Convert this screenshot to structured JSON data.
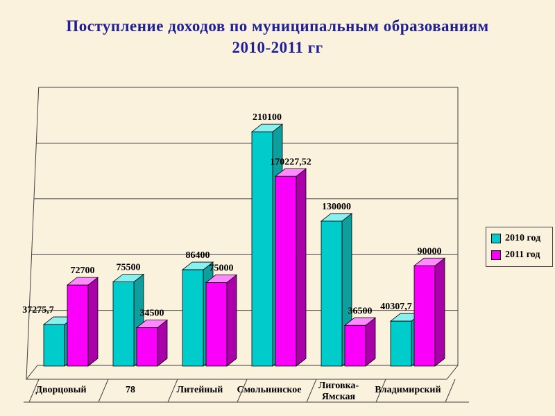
{
  "slide": {
    "background_color": "#FBF2DE"
  },
  "title": {
    "line1": "Поступление доходов по муниципальным образованиям",
    "line2": "2010-2011 гг",
    "color": "#1F1F96"
  },
  "legend": {
    "items": [
      {
        "label": "2010 год",
        "color": "#00CCCC"
      },
      {
        "label": "2011 год",
        "color": "#FA00FA"
      }
    ]
  },
  "chart_data": {
    "type": "bar",
    "style": "3d",
    "title": "Поступление доходов по муниципальным образованиям 2010-2011 гг",
    "xlabel": "",
    "ylabel": "",
    "categories": [
      "Дворцовый",
      "78",
      "Литейный",
      "Смольнинское",
      "Лиговка-Ямская",
      "Владимирский"
    ],
    "series": [
      {
        "name": "2010 год",
        "color": "#00CCCC",
        "color_top": "#8AEFEF",
        "color_side": "#0D9E9E",
        "values": [
          37275.7,
          75500,
          86400,
          210100,
          130000,
          40307.7
        ],
        "labels": [
          "37275,7",
          "75500",
          "86400",
          "210100",
          "130000",
          "40307,7"
        ],
        "label_dx": [
          -30,
          0,
          0,
          0,
          0,
          -14
        ]
      },
      {
        "name": "2011 год",
        "color": "#FA00FA",
        "color_top": "#FF8AFF",
        "color_side": "#AA00AA",
        "values": [
          72700,
          34500,
          75000,
          170227.52,
          36500,
          90000
        ],
        "labels": [
          "72700",
          "34500",
          "75000",
          "170227,52",
          "36500",
          "90000"
        ],
        "label_dx": [
          0,
          0,
          0,
          0,
          0,
          0
        ]
      }
    ],
    "ylim": [
      0,
      250000
    ],
    "grid_step": 50000,
    "gridlines": true,
    "value_axis_labels_visible": false,
    "legend_position": "right"
  }
}
